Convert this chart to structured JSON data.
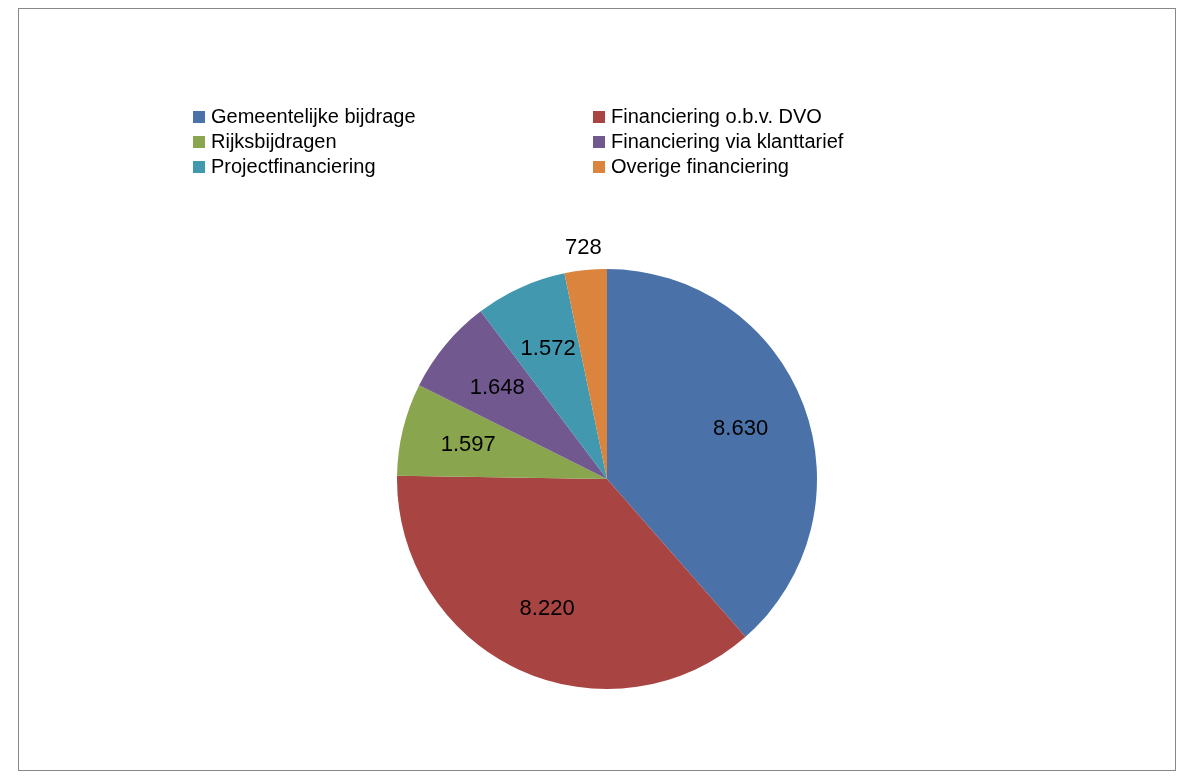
{
  "chart_data": {
    "type": "pie",
    "categories": [
      "Gemeentelijke bijdrage",
      "Financiering o.b.v. DVO",
      "Rijksbijdragen",
      "Financiering via klanttarief",
      "Projectfinanciering",
      "Overige financiering"
    ],
    "values": [
      8630,
      8220,
      1597,
      1648,
      1572,
      728
    ],
    "value_labels": [
      "8.630",
      "8.220",
      "1.597",
      "1.648",
      "1.572",
      "728"
    ],
    "colors": [
      "#4a72a8",
      "#a84442",
      "#89a54e",
      "#71588f",
      "#4198af",
      "#db843d"
    ],
    "legend": "top"
  }
}
